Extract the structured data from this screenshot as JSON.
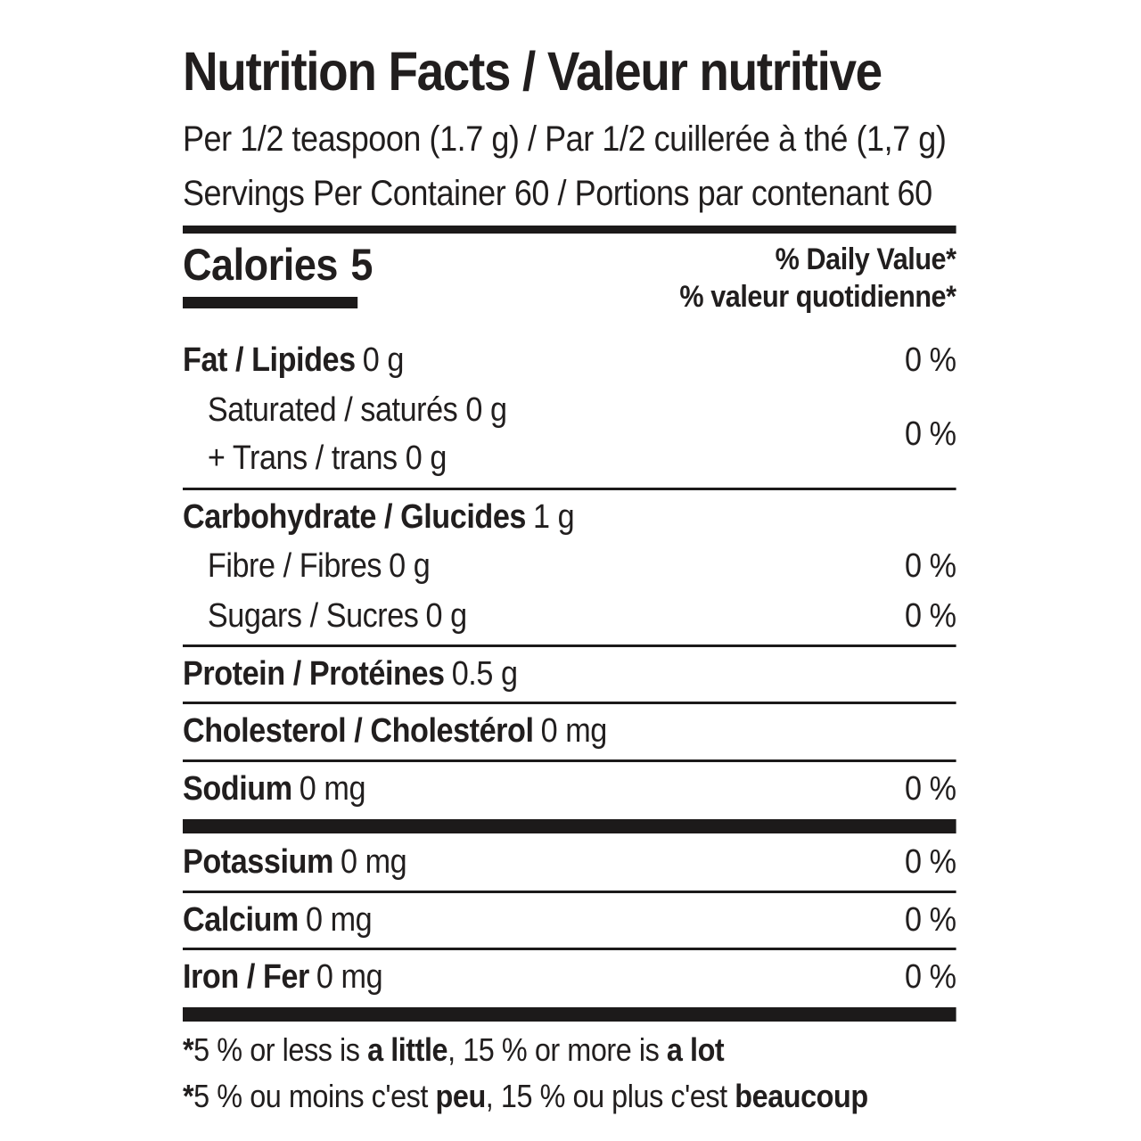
{
  "colors": {
    "background": "#ffffff",
    "text": "#211e1e",
    "rule": "#1c1a1a"
  },
  "label": {
    "title": "Nutrition Facts / Valeur nutritive",
    "serving_size": "Per 1/2 teaspoon (1.7 g) / Par 1/2 cuillerée à thé (1,7 g)",
    "servings_per_container": "Servings Per Container 60 / Portions par contenant 60",
    "calories": {
      "name": "Calories",
      "value": "5"
    },
    "daily_value_header": {
      "en": "% Daily Value*",
      "fr": "% valeur quotidienne*"
    },
    "fat": {
      "name": "Fat / Lipides",
      "amount": "0 g",
      "dv": "0 %"
    },
    "saturated_trans": {
      "line1": "Saturated / saturés 0 g",
      "line2": "+ Trans / trans 0 g",
      "dv": "0 %"
    },
    "carbohydrate": {
      "name": "Carbohydrate / Glucides",
      "amount": "1 g"
    },
    "fibre": {
      "name": "Fibre / Fibres",
      "amount": "0 g",
      "dv": "0 %"
    },
    "sugars": {
      "name": "Sugars / Sucres",
      "amount": "0 g",
      "dv": "0 %"
    },
    "protein": {
      "name": "Protein / Protéines",
      "amount": "0.5 g"
    },
    "cholesterol": {
      "name": "Cholesterol / Cholestérol",
      "amount": "0 mg"
    },
    "sodium": {
      "name": "Sodium",
      "amount": "0 mg",
      "dv": "0 %"
    },
    "potassium": {
      "name": "Potassium",
      "amount": "0 mg",
      "dv": "0 %"
    },
    "calcium": {
      "name": "Calcium",
      "amount": "0 mg",
      "dv": "0 %"
    },
    "iron": {
      "name": "Iron / Fer",
      "amount": "0 mg",
      "dv": "0 %"
    },
    "footnote_en": {
      "prefix": "*",
      "part1": "5 % or less is ",
      "bold1": "a little",
      "part2": ", 15 % or more is ",
      "bold2": "a lot"
    },
    "footnote_fr": {
      "prefix": "*",
      "part1": "5 % ou moins c'est ",
      "bold1": "peu",
      "part2": ", 15 % ou plus c'est ",
      "bold2": "beaucoup"
    }
  }
}
